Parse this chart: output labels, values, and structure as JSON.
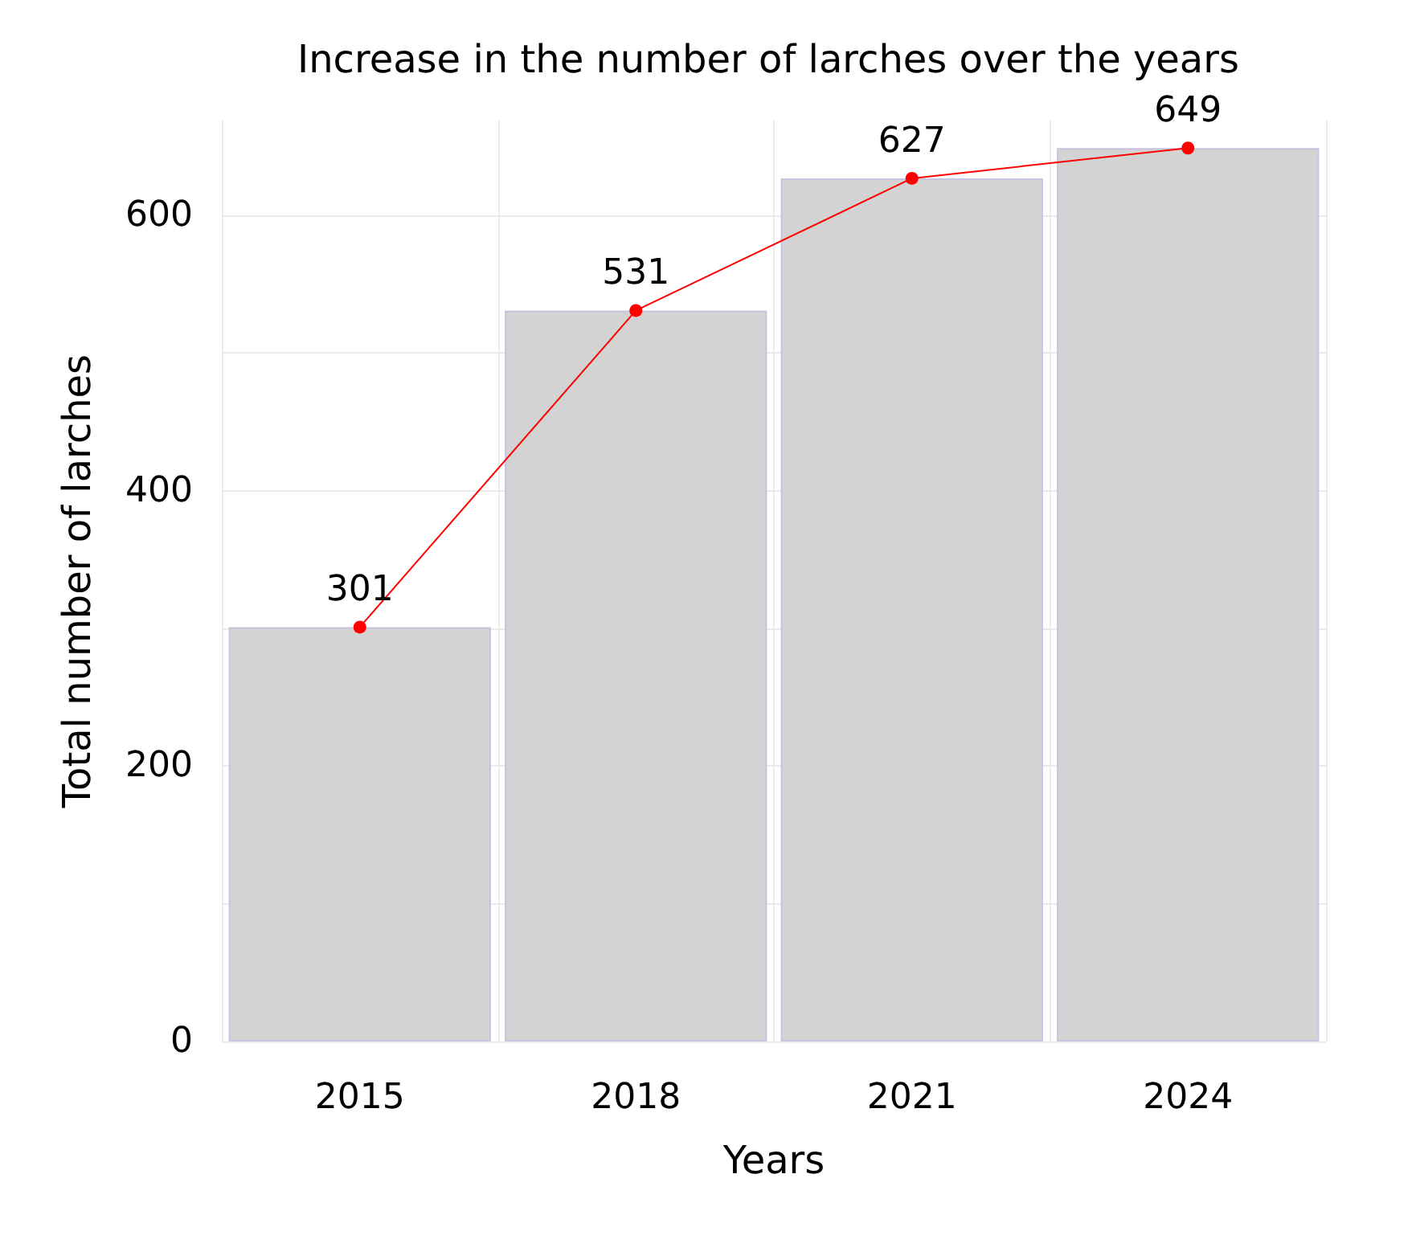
{
  "chart_data": {
    "type": "bar",
    "title": "Increase in the number of larches over the years",
    "xlabel": "Years",
    "ylabel": "Total number of larches",
    "categories": [
      "2015",
      "2018",
      "2021",
      "2024"
    ],
    "series": [
      {
        "color": "#d3d3d3",
        "values": [
          301,
          531,
          627,
          649
        ]
      },
      {
        "type": "line",
        "color": "#ff0000",
        "values": [
          301,
          531,
          627,
          649
        ],
        "marker": "circle",
        "value_labels": [
          "301",
          "531",
          "627",
          "649"
        ]
      }
    ],
    "ylim": [
      0,
      669
    ],
    "yticks": [
      0,
      {
        "value": 100,
        "label": null
      },
      200,
      {
        "value": 300,
        "label": null
      },
      400,
      {
        "value": 500,
        "label": null
      },
      600
    ],
    "grid": true
  }
}
